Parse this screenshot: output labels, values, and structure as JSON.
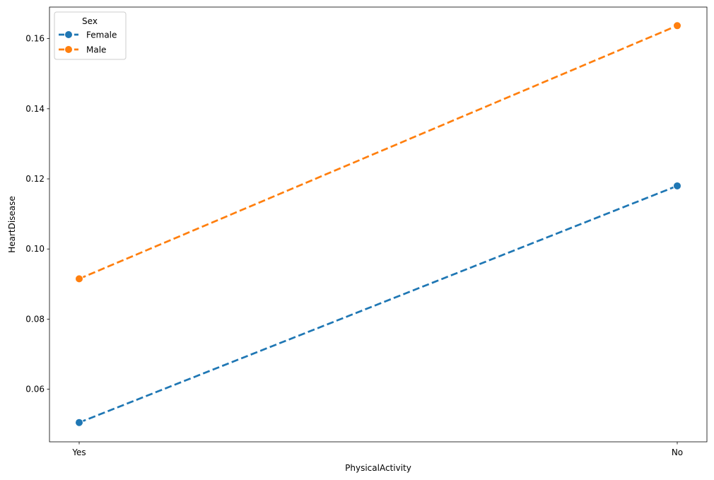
{
  "chart_data": {
    "type": "line",
    "title": "",
    "xlabel": "PhysicalActivity",
    "ylabel": "HeartDisease",
    "categories": [
      "Yes",
      "No"
    ],
    "ylim": [
      0.045,
      0.169
    ],
    "yticks": [
      0.06,
      0.08,
      0.1,
      0.12,
      0.14,
      0.16
    ],
    "ytick_labels": [
      "0.06",
      "0.08",
      "0.10",
      "0.12",
      "0.14",
      "0.16"
    ],
    "grid": false,
    "legend": {
      "title": "Sex",
      "placement": "top-left"
    },
    "line_style": "dashed",
    "marker": "circle",
    "series": [
      {
        "name": "Female",
        "color": "#1f77b4",
        "values": [
          0.0505,
          0.118
        ]
      },
      {
        "name": "Male",
        "color": "#ff7f0e",
        "values": [
          0.0915,
          0.1637
        ]
      }
    ]
  }
}
